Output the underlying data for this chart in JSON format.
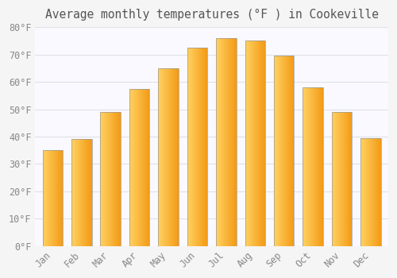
{
  "title": "Average monthly temperatures (°F ) in Cookeville",
  "months": [
    "Jan",
    "Feb",
    "Mar",
    "Apr",
    "May",
    "Jun",
    "Jul",
    "Aug",
    "Sep",
    "Oct",
    "Nov",
    "Dec"
  ],
  "temperatures": [
    35,
    39,
    49,
    57.5,
    65,
    72.5,
    76,
    75,
    69.5,
    58,
    49,
    39.5
  ],
  "bar_color_top": "#FFD060",
  "bar_color_bottom": "#FFA020",
  "bar_color_right": "#E08000",
  "bar_edge_color": "#999999",
  "ylim": [
    0,
    80
  ],
  "ytick_step": 10,
  "background_color": "#f5f5f5",
  "plot_bg_color": "#f9f9ff",
  "grid_color": "#e0e0e8",
  "title_fontsize": 10.5,
  "tick_fontsize": 8.5,
  "tick_label_color": "#888888",
  "title_color": "#555555",
  "font_family": "monospace"
}
